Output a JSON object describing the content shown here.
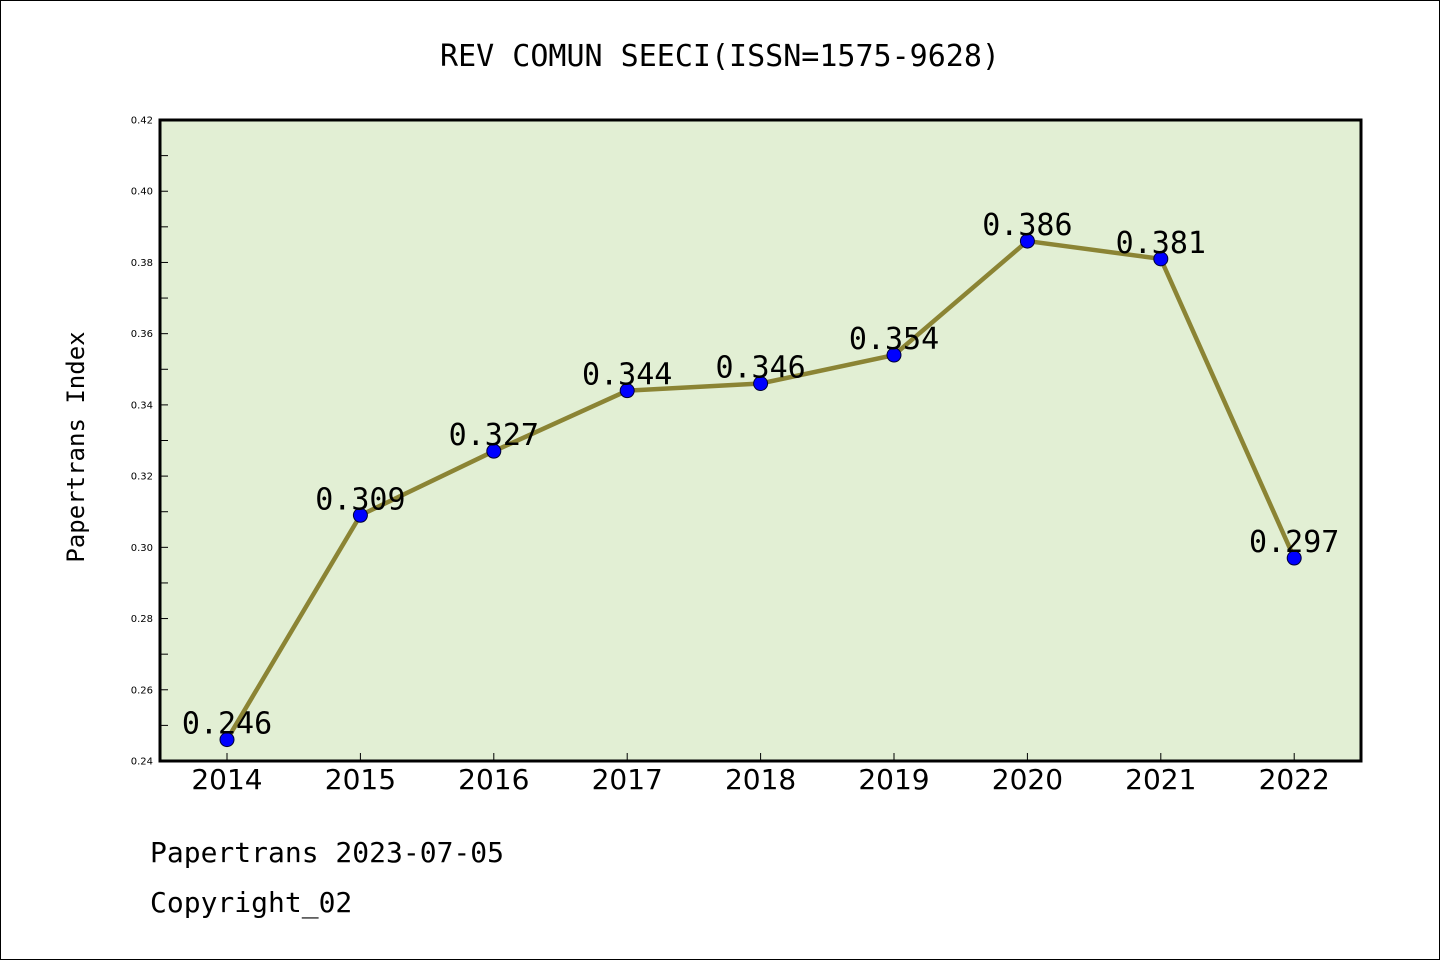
{
  "chart_data": {
    "type": "line",
    "title": "REV COMUN SEECI(ISSN=1575-9628)",
    "xlabel": "",
    "ylabel": "Papertrans Index",
    "x": [
      "2014",
      "2015",
      "2016",
      "2017",
      "2018",
      "2019",
      "2020",
      "2021",
      "2022"
    ],
    "values": [
      0.246,
      0.309,
      0.327,
      0.344,
      0.346,
      0.354,
      0.386,
      0.381,
      0.297
    ],
    "data_labels": [
      "0.246",
      "0.309",
      "0.327",
      "0.344",
      "0.346",
      "0.354",
      "0.386",
      "0.381",
      "0.297"
    ],
    "ylim": [
      0.24,
      0.42
    ],
    "yticks": [
      "0.24",
      "0.26",
      "0.28",
      "0.30",
      "0.32",
      "0.34",
      "0.36",
      "0.38",
      "0.40",
      "0.42"
    ],
    "grid": false,
    "colors": {
      "line": "#8b8434",
      "marker": "#0000ff",
      "plot_bg": "#e2efd4"
    }
  },
  "footer": {
    "date_line": "Papertrans 2023-07-05",
    "copyright": "Copyright_02"
  }
}
